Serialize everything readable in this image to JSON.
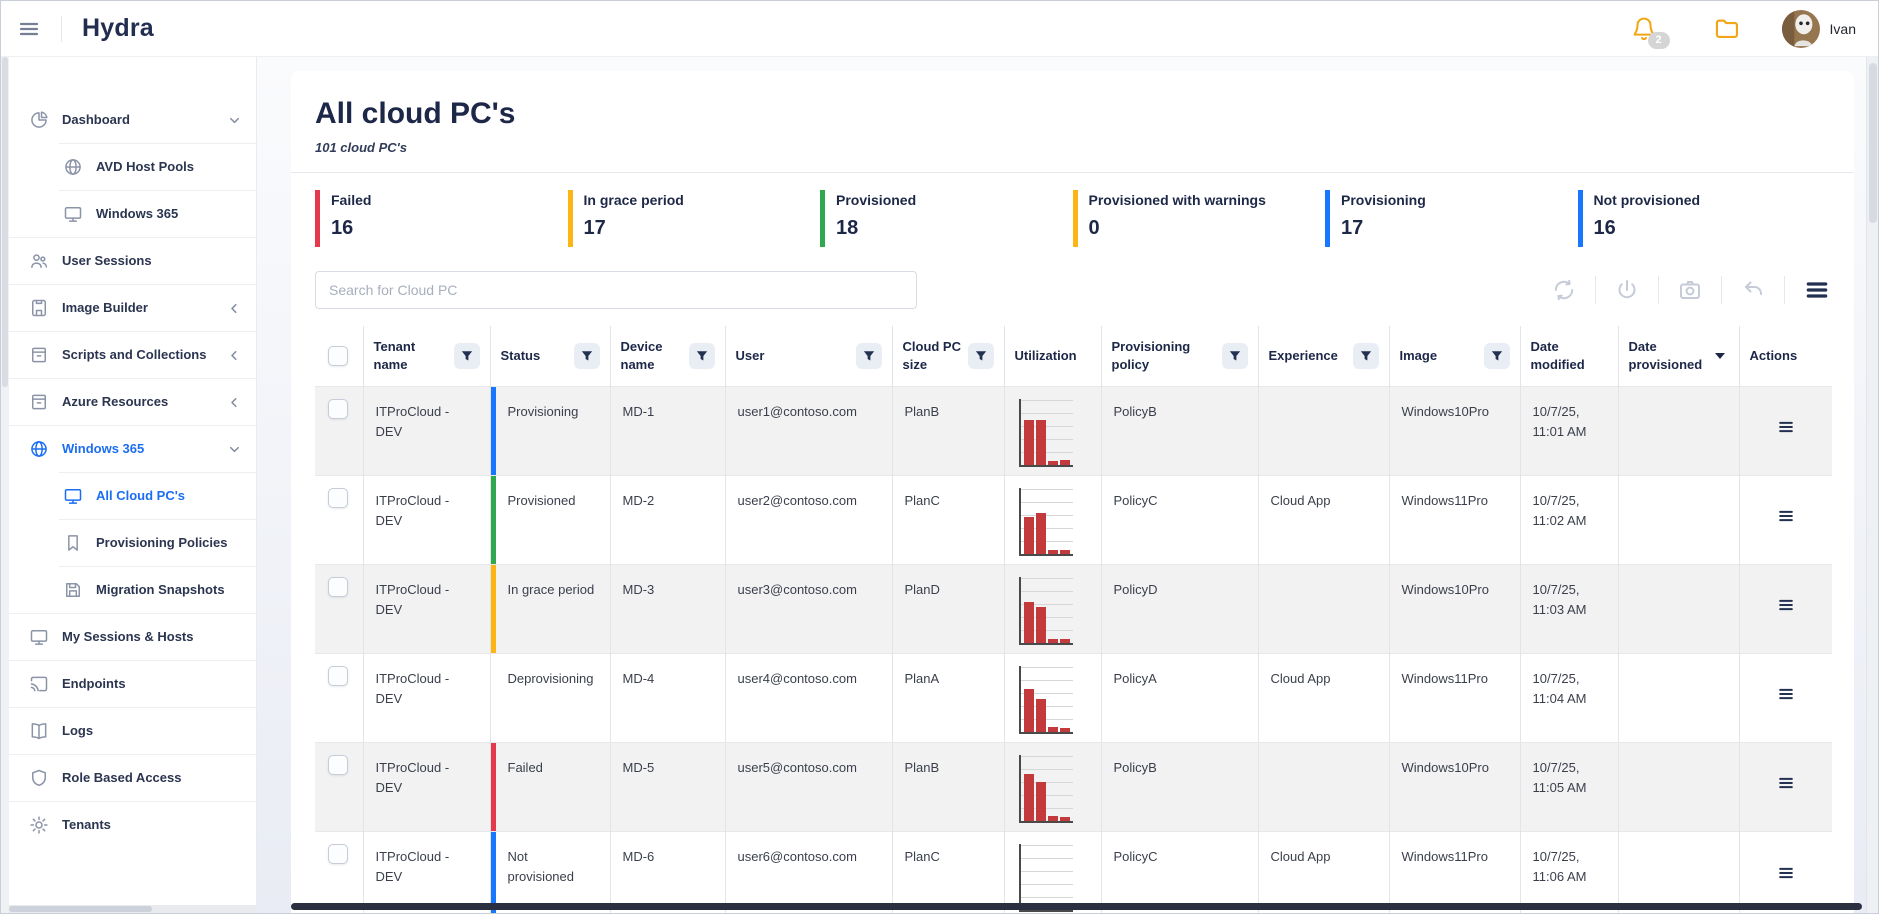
{
  "topbar": {
    "title": "Hydra",
    "notification_count": "2",
    "user_name": "Ivan"
  },
  "sidebar": {
    "items": [
      {
        "label": "Dashboard",
        "icon": "pie-chart-icon"
      },
      {
        "label": "AVD Host Pools",
        "icon": "globe-icon"
      },
      {
        "label": "Windows 365",
        "icon": "monitor-icon"
      },
      {
        "label": "User Sessions",
        "icon": "users-icon"
      },
      {
        "label": "Image Builder",
        "icon": "image-file-icon"
      },
      {
        "label": "Scripts and Collections",
        "icon": "archive-box-icon"
      },
      {
        "label": "Azure Resources",
        "icon": "archive-box-icon"
      },
      {
        "label": "Windows 365",
        "icon": "globe-icon",
        "active": true
      },
      {
        "label": "All Cloud PC's",
        "icon": "monitor-icon",
        "active": true
      },
      {
        "label": "Provisioning Policies",
        "icon": "bookmark-icon"
      },
      {
        "label": "Migration Snapshots",
        "icon": "floppy-icon"
      },
      {
        "label": "My Sessions & Hosts",
        "icon": "monitor-icon"
      },
      {
        "label": "Endpoints",
        "icon": "cast-icon"
      },
      {
        "label": "Logs",
        "icon": "book-icon"
      },
      {
        "label": "Role Based Access",
        "icon": "shield-icon"
      },
      {
        "label": "Tenants",
        "icon": "gear-icon"
      }
    ]
  },
  "main": {
    "title": "All cloud PC's",
    "subtitle": "101 cloud PC's",
    "search_placeholder": "Search for Cloud PC",
    "toolbar_icons": [
      "refresh",
      "power",
      "camera",
      "undo",
      "columns"
    ],
    "summary_cards": [
      {
        "label": "Failed",
        "value": "16",
        "color": "#e5384c"
      },
      {
        "label": "In grace period",
        "value": "17",
        "color": "#fdb515"
      },
      {
        "label": "Provisioned",
        "value": "18",
        "color": "#2fa84f"
      },
      {
        "label": "Provisioned with warnings",
        "value": "0",
        "color": "#fdb515"
      },
      {
        "label": "Provisioning",
        "value": "17",
        "color": "#1778ff"
      },
      {
        "label": "Not provisioned",
        "value": "16",
        "color": "#1778ff"
      }
    ]
  },
  "table": {
    "columns": [
      {
        "label": "Tenant name",
        "filter": true
      },
      {
        "label": "Status",
        "filter": true
      },
      {
        "label": "Device name",
        "filter": true
      },
      {
        "label": "User",
        "filter": true
      },
      {
        "label": "Cloud PC size",
        "filter": true
      },
      {
        "label": "Utilization",
        "filter": false
      },
      {
        "label": "Provisioning policy",
        "filter": true
      },
      {
        "label": "Experience",
        "filter": true
      },
      {
        "label": "Image",
        "filter": true
      },
      {
        "label": "Date modified",
        "filter": false
      },
      {
        "label": "Date provisioned",
        "filter": false,
        "sort": "desc"
      },
      {
        "label": "Actions",
        "filter": false
      }
    ],
    "rows": [
      {
        "tenant": "ITProCloud - DEV",
        "status": "Provisioning",
        "status_color": "#1778ff",
        "device": "MD-1",
        "user": "user1@contoso.com",
        "size": "PlanB",
        "utilization": [
          68,
          68,
          5,
          7
        ],
        "policy": "PolicyB",
        "experience": "",
        "image": "Windows10Pro",
        "date_modified": "10/7/25, 11:01 AM",
        "date_provisioned": ""
      },
      {
        "tenant": "ITProCloud - DEV",
        "status": "Provisioned",
        "status_color": "#2fa84f",
        "device": "MD-2",
        "user": "user2@contoso.com",
        "size": "PlanC",
        "utilization": [
          55,
          62,
          6,
          5
        ],
        "policy": "PolicyC",
        "experience": "Cloud App",
        "image": "Windows11Pro",
        "date_modified": "10/7/25, 11:02 AM",
        "date_provisioned": ""
      },
      {
        "tenant": "ITProCloud - DEV",
        "status": "In grace period",
        "status_color": "#fdb515",
        "device": "MD-3",
        "user": "user3@contoso.com",
        "size": "PlanD",
        "utilization": [
          62,
          54,
          5,
          6
        ],
        "policy": "PolicyD",
        "experience": "",
        "image": "Windows10Pro",
        "date_modified": "10/7/25, 11:03 AM",
        "date_provisioned": ""
      },
      {
        "tenant": "ITProCloud - DEV",
        "status": "Deprovisioning",
        "status_color": "",
        "device": "MD-4",
        "user": "user4@contoso.com",
        "size": "PlanA",
        "utilization": [
          64,
          50,
          7,
          6
        ],
        "policy": "PolicyA",
        "experience": "Cloud App",
        "image": "Windows11Pro",
        "date_modified": "10/7/25, 11:04 AM",
        "date_provisioned": ""
      },
      {
        "tenant": "ITProCloud - DEV",
        "status": "Failed",
        "status_color": "#e5384c",
        "device": "MD-5",
        "user": "user5@contoso.com",
        "size": "PlanB",
        "utilization": [
          70,
          58,
          7,
          5
        ],
        "policy": "PolicyB",
        "experience": "",
        "image": "Windows10Pro",
        "date_modified": "10/7/25, 11:05 AM",
        "date_provisioned": ""
      },
      {
        "tenant": "ITProCloud - DEV",
        "status": "Not provisioned",
        "status_color": "#1778ff",
        "device": "MD-6",
        "user": "user6@contoso.com",
        "size": "PlanC",
        "utilization": [
          0,
          6,
          0,
          0
        ],
        "policy": "PolicyC",
        "experience": "Cloud App",
        "image": "Windows11Pro",
        "date_modified": "10/7/25, 11:06 AM",
        "date_provisioned": ""
      }
    ]
  }
}
